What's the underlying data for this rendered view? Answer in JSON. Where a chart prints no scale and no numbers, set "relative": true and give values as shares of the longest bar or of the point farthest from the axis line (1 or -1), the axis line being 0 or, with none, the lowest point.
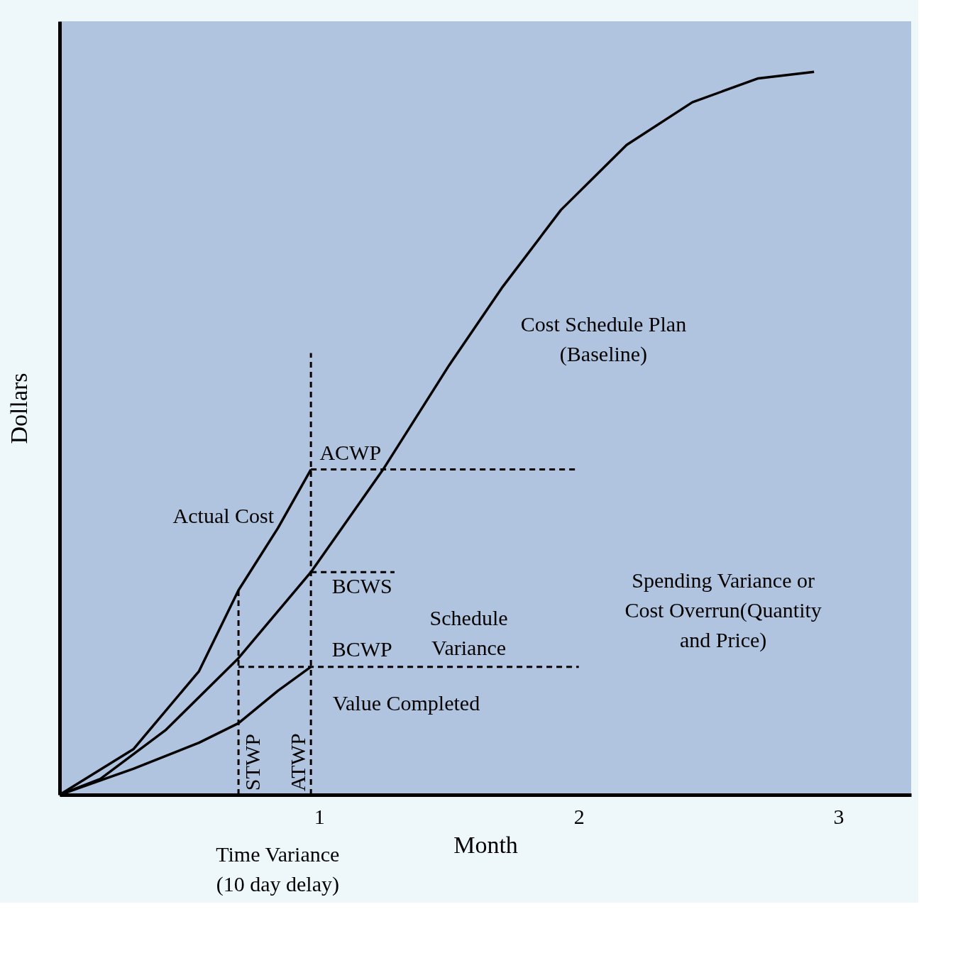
{
  "chart_data": {
    "type": "line",
    "relative": true,
    "xlabel": "Month",
    "ylabel": "Dollars",
    "xlim": [
      0,
      3.28
    ],
    "xticks": [
      1,
      2,
      3
    ],
    "grid": false,
    "marker": "none",
    "series": [
      {
        "color": "#000000",
        "line_style": "solid",
        "x": [
          0,
          0.157,
          0.41,
          0.689,
          0.968,
          1.246,
          1.5,
          1.703,
          1.931,
          2.184,
          2.437,
          2.691,
          2.906
        ],
        "values": [
          0,
          0.022,
          0.09,
          0.189,
          0.308,
          0.45,
          0.594,
          0.701,
          0.809,
          0.899,
          0.958,
          0.991,
          1
        ]
      },
      {
        "color": "#000000",
        "line_style": "solid",
        "x": [
          0,
          0.284,
          0.537,
          0.689,
          0.841,
          0.968
        ],
        "values": [
          0,
          0.063,
          0.171,
          0.283,
          0.369,
          0.45
        ]
      },
      {
        "color": "#000000",
        "line_style": "solid",
        "x": [
          0,
          0.284,
          0.537,
          0.689,
          0.841,
          0.968
        ],
        "values": [
          0,
          0.036,
          0.072,
          0.099,
          0.144,
          0.177
        ]
      },
      {
        "color": "#000000",
        "line_style": "dashed",
        "x": [
          0.968,
          2.0
        ],
        "values": [
          0.45,
          0.45
        ]
      },
      {
        "color": "#000000",
        "line_style": "dashed",
        "x": [
          0.968,
          1.29
        ],
        "values": [
          0.308,
          0.308
        ]
      },
      {
        "color": "#000000",
        "line_style": "dashed",
        "x": [
          0.689,
          2.0
        ],
        "values": [
          0.177,
          0.177
        ]
      },
      {
        "color": "#000000",
        "line_style": "dashed",
        "x": [
          0.689,
          0.689
        ],
        "values": [
          0,
          0.283
        ]
      },
      {
        "color": "#000000",
        "line_style": "dashed",
        "x": [
          0.968,
          0.968
        ],
        "values": [
          0,
          0.611
        ]
      }
    ],
    "annotations": [
      "Cost Schedule Plan\n(Baseline)",
      "Actual Cost",
      "Value Completed",
      "ACWP",
      "BCWS",
      "BCWP",
      "Schedule\nVariance",
      "Spending Variance or\nCost Overrun(Quantity\nand Price)",
      "STWP",
      "ATWP",
      "Time Variance\n(10 day delay)"
    ]
  }
}
